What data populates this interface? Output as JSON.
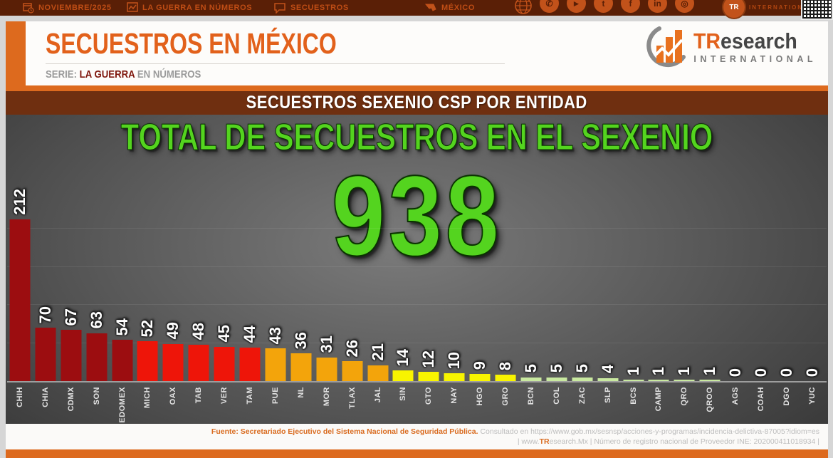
{
  "topbar": {
    "date_label": "NOVIEMBRE/2025",
    "series_label": "LA GUERRA EN NÚMEROS",
    "section_label": "SECUESTROS",
    "country_label": "MÉXICO",
    "logo_initials": "TR",
    "brand_label": "INTERNATIONAL"
  },
  "header": {
    "title": "SECUESTROS EN MÉXICO",
    "serie_prefix": "SERIE: ",
    "serie_strong": "LA GUERRA",
    "serie_suffix": " EN NÚMEROS",
    "logo_tr": "TR",
    "logo_rest": "esearch",
    "logo_sub": "INTERNATIONAL"
  },
  "banner": {
    "title": "SECUESTROS SEXENIO CSP POR ENTIDAD"
  },
  "chart_data": {
    "type": "bar",
    "title": "TOTAL DE SECUESTROS EN EL SEXENIO",
    "total_label": "938",
    "total": 938,
    "categories": [
      "CHIH",
      "CHIA",
      "CDMX",
      "SON",
      "EDOMEX",
      "MICH",
      "OAX",
      "TAB",
      "VER",
      "TAM",
      "PUE",
      "NL",
      "MOR",
      "TLAX",
      "JAL",
      "SIN",
      "GTO",
      "NAY",
      "HGO",
      "GRO",
      "BCN",
      "COL",
      "ZAC",
      "SLP",
      "BCS",
      "CAMP",
      "QRO",
      "QROO",
      "AGS",
      "COAH",
      "DGO",
      "YUC"
    ],
    "values": [
      212,
      70,
      67,
      63,
      54,
      52,
      49,
      48,
      45,
      44,
      43,
      36,
      31,
      26,
      21,
      14,
      12,
      10,
      9,
      8,
      5,
      5,
      5,
      4,
      1,
      1,
      1,
      1,
      0,
      0,
      0,
      0
    ],
    "colors": [
      "#9c0d10",
      "#9c0d10",
      "#9c0d10",
      "#9c0d10",
      "#9c0d10",
      "#ee1509",
      "#ee1509",
      "#ee1509",
      "#ee1509",
      "#ee1509",
      "#f3a40b",
      "#f3a40b",
      "#f3a40b",
      "#f3a40b",
      "#f3a40b",
      "#f8f400",
      "#f8f400",
      "#f8f400",
      "#f8f400",
      "#f8f400",
      "#c9e9a0",
      "#c9e9a0",
      "#c9e9a0",
      "#c9e9a0",
      "#c9e9a0",
      "#c9e9a0",
      "#c9e9a0",
      "#c9e9a0",
      "#c9e9a0",
      "#c9e9a0",
      "#c9e9a0",
      "#c9e9a0"
    ],
    "palette": {
      "dark_red": "#9c0d10",
      "red": "#ee1509",
      "orange": "#f3a40b",
      "yellow": "#f8f400",
      "light_green": "#c9e9a0",
      "accent_green": "#54d41f",
      "accent_orange": "#dd6a1e"
    },
    "ylim": [
      0,
      230
    ],
    "gridlines": [
      50,
      100,
      150,
      200
    ],
    "legend": "none",
    "xlabel": "",
    "ylabel": ""
  },
  "footer": {
    "source_strong": "Fuente: Secretariado Ejecutivo del Sistema Nacional de Seguridad Pública. ",
    "source_rest": "Consultado en https://www.gob.mx/sesnsp/acciones-y-programas/incidencia-delictiva-87005?idiom=es",
    "line2_pre": "| www.",
    "line2_tr": "TR",
    "line2_post": "esearch.Mx | Número de registro nacional de Proveedor INE: 202000411018934  |"
  }
}
